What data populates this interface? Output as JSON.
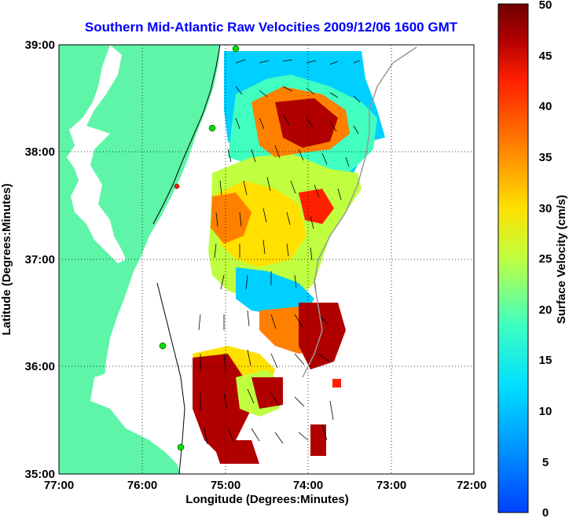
{
  "title": "Southern Mid-Atlantic Raw Velocities 2009/12/06 1600 GMT",
  "x_axis": {
    "label": "Longitude (Degrees:Minutes)",
    "ticks": [
      "77:00",
      "76:00",
      "75:00",
      "74:00",
      "73:00",
      "72:00"
    ]
  },
  "y_axis": {
    "label": "Latitude (Degrees:Minutes)",
    "ticks": [
      "39:00",
      "38:00",
      "37:00",
      "36:00",
      "35:00"
    ]
  },
  "colorbar": {
    "label": "Surface Velocity (cm/s)",
    "ticks": [
      "50",
      "45",
      "40",
      "35",
      "30",
      "25",
      "20",
      "15",
      "10",
      "5",
      "0"
    ],
    "range": [
      0,
      50
    ],
    "colors": [
      "#0040ff",
      "#00c8ff",
      "#40ffc0",
      "#c0ff40",
      "#ffe000",
      "#ff8000",
      "#ff2000",
      "#b00000",
      "#700000"
    ]
  },
  "colors": {
    "land": "#5ef5a8",
    "water": "#ffffff",
    "title": "#0000ff",
    "station": "#00e000"
  },
  "map": {
    "lon_range": [
      -77,
      -72
    ],
    "lat_range": [
      35,
      39
    ],
    "grid": "dotted"
  }
}
